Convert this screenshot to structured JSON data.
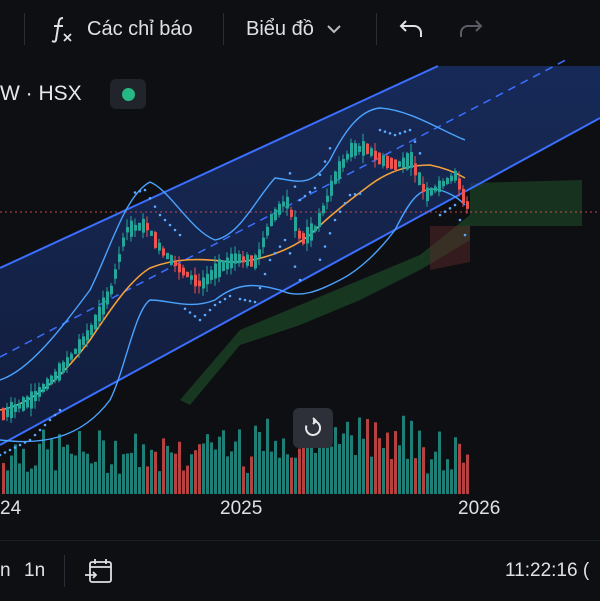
{
  "toolbar": {
    "indicators_label": "Các chỉ báo",
    "chart_type_label": "Biểu đồ",
    "fx_icon": "function-icon",
    "undo_icon": "undo-icon",
    "redo_icon": "redo-icon"
  },
  "symbol": {
    "label": "W · HSX",
    "status_color": "#26b884"
  },
  "time_axis": {
    "labels": [
      "24",
      "2025",
      "2026"
    ]
  },
  "bottom_bar": {
    "range_left": "n",
    "range_1n": "1n",
    "compare_icon": "calendar-goto-icon",
    "clock": "11:22:16 ("
  },
  "colors": {
    "up": "#26a69a",
    "down": "#ef5350",
    "channel": "#3b6fff",
    "bollinger": "#4aa3ff",
    "ma": "#f4a13b"
  }
}
